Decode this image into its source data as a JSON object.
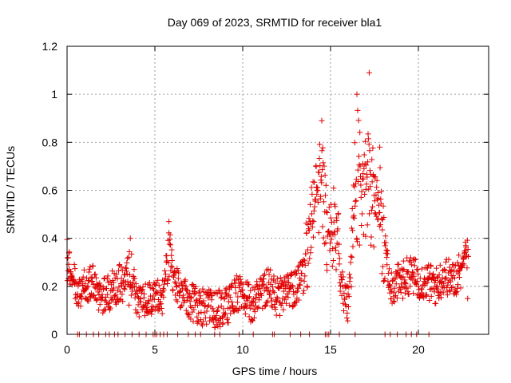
{
  "chart_data": {
    "type": "scatter",
    "title": "Day 069 of 2023, SRMTID for receiver bla1",
    "xlabel": "GPS time / hours",
    "ylabel": "SRMTID / TECUs",
    "xlim": [
      0,
      24
    ],
    "ylim": [
      0,
      1.2
    ],
    "x_ticks": [
      0,
      5,
      10,
      15,
      20
    ],
    "x_tick_labels": [
      "0",
      "5",
      "10",
      "15",
      "20"
    ],
    "y_ticks": [
      0,
      0.2,
      0.4,
      0.6,
      0.8,
      1.0,
      1.2
    ],
    "y_tick_labels": [
      "0",
      "0.2",
      "0.4",
      "0.6",
      "0.8",
      "1",
      "1.2"
    ],
    "grid": true,
    "marker": "+",
    "color": "#e00000",
    "series": [
      {
        "name": "SRMTID",
        "envelope": [
          {
            "x": 0.0,
            "y": 0.32
          },
          {
            "x": 0.2,
            "y": 0.25
          },
          {
            "x": 0.6,
            "y": 0.18
          },
          {
            "x": 1.0,
            "y": 0.2
          },
          {
            "x": 1.5,
            "y": 0.22
          },
          {
            "x": 2.0,
            "y": 0.15
          },
          {
            "x": 2.5,
            "y": 0.18
          },
          {
            "x": 3.0,
            "y": 0.22
          },
          {
            "x": 3.5,
            "y": 0.2
          },
          {
            "x": 4.0,
            "y": 0.15
          },
          {
            "x": 4.5,
            "y": 0.14
          },
          {
            "x": 5.0,
            "y": 0.15
          },
          {
            "x": 5.5,
            "y": 0.16
          },
          {
            "x": 5.8,
            "y": 0.3
          },
          {
            "x": 6.2,
            "y": 0.2
          },
          {
            "x": 6.8,
            "y": 0.15
          },
          {
            "x": 7.5,
            "y": 0.12
          },
          {
            "x": 8.5,
            "y": 0.1
          },
          {
            "x": 9.2,
            "y": 0.12
          },
          {
            "x": 9.8,
            "y": 0.18
          },
          {
            "x": 10.5,
            "y": 0.12
          },
          {
            "x": 11.0,
            "y": 0.18
          },
          {
            "x": 11.5,
            "y": 0.2
          },
          {
            "x": 12.0,
            "y": 0.15
          },
          {
            "x": 12.8,
            "y": 0.18
          },
          {
            "x": 13.5,
            "y": 0.25
          },
          {
            "x": 14.0,
            "y": 0.5
          },
          {
            "x": 14.5,
            "y": 0.65
          },
          {
            "x": 14.8,
            "y": 0.4
          },
          {
            "x": 15.3,
            "y": 0.45
          },
          {
            "x": 15.6,
            "y": 0.2
          },
          {
            "x": 16.0,
            "y": 0.12
          },
          {
            "x": 16.4,
            "y": 0.45
          },
          {
            "x": 16.8,
            "y": 0.6
          },
          {
            "x": 17.2,
            "y": 0.55
          },
          {
            "x": 17.6,
            "y": 0.5
          },
          {
            "x": 18.0,
            "y": 0.35
          },
          {
            "x": 18.5,
            "y": 0.2
          },
          {
            "x": 19.0,
            "y": 0.22
          },
          {
            "x": 19.5,
            "y": 0.25
          },
          {
            "x": 20.0,
            "y": 0.23
          },
          {
            "x": 20.5,
            "y": 0.22
          },
          {
            "x": 21.0,
            "y": 0.2
          },
          {
            "x": 21.5,
            "y": 0.25
          },
          {
            "x": 22.0,
            "y": 0.22
          },
          {
            "x": 22.5,
            "y": 0.28
          },
          {
            "x": 22.8,
            "y": 0.32
          }
        ],
        "peaks": [
          {
            "x": 0.05,
            "y": 0.32
          },
          {
            "x": 3.6,
            "y": 0.4
          },
          {
            "x": 5.8,
            "y": 0.47
          },
          {
            "x": 14.5,
            "y": 0.89
          },
          {
            "x": 16.5,
            "y": 1.0
          },
          {
            "x": 17.2,
            "y": 1.09
          },
          {
            "x": 17.8,
            "y": 0.78
          },
          {
            "x": 22.7,
            "y": 0.37
          }
        ],
        "zero_values_x": [
          0.6,
          0.7,
          1.1,
          1.5,
          1.8,
          2.2,
          2.4,
          2.7,
          2.9,
          3.3,
          3.7,
          4.1,
          4.5,
          4.9,
          5.0,
          5.1,
          5.3,
          5.5,
          5.7,
          6.3,
          6.9,
          7.3,
          7.6,
          8.4,
          8.7,
          9.8,
          10.6,
          11.7,
          11.8,
          12.7,
          13.3,
          13.8,
          14.7,
          14.8,
          14.9,
          15.5,
          16.4,
          18.1,
          18.4,
          18.8,
          19.3,
          19.6,
          19.9,
          20.6
        ]
      }
    ]
  }
}
